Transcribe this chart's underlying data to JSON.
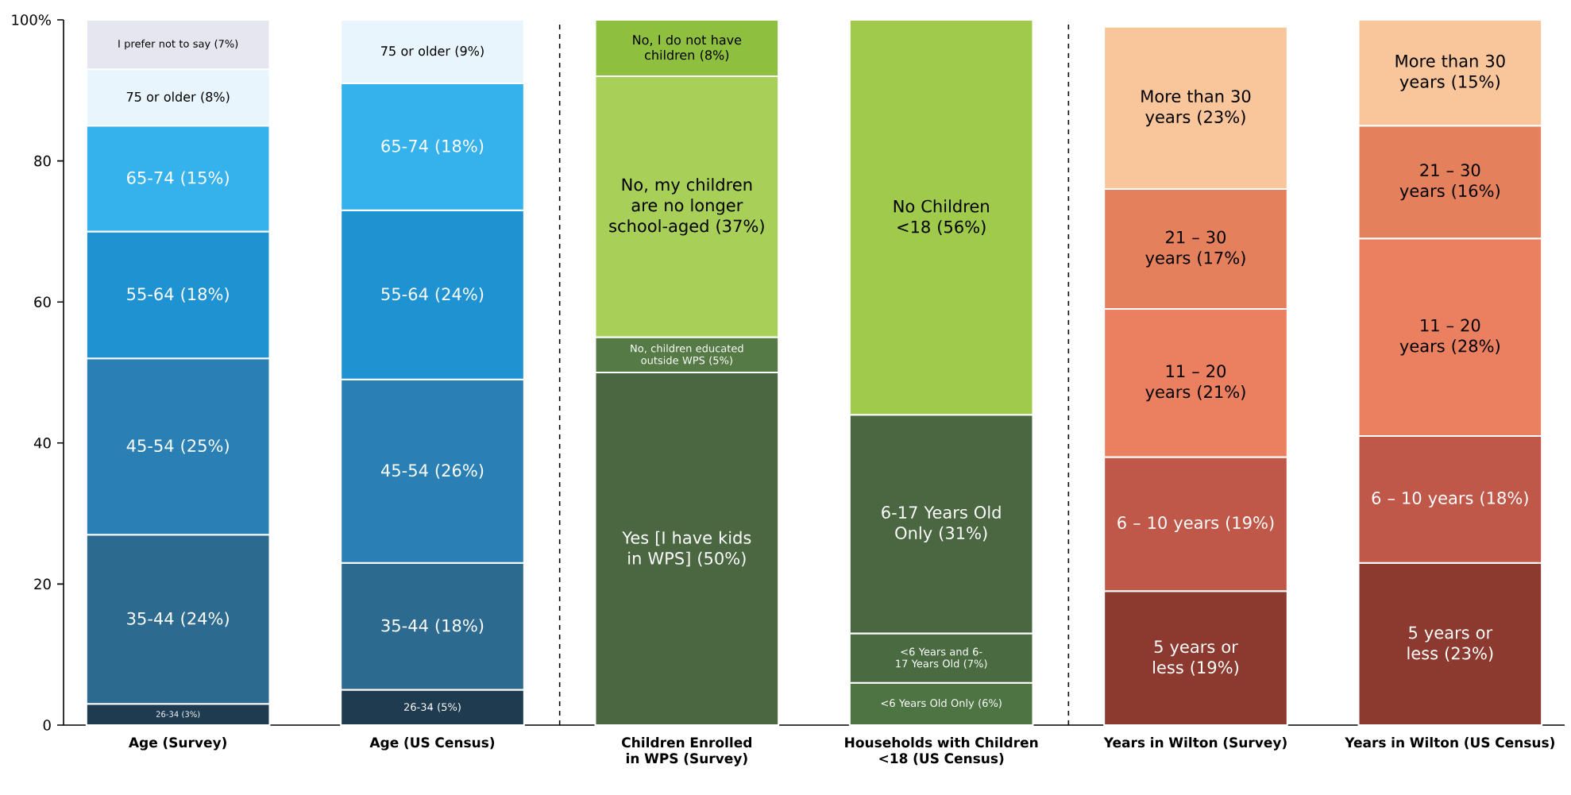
{
  "chart_data": {
    "type": "bar",
    "stacked": true,
    "categories": [
      "Age (Survey)",
      "Age (US Census)",
      "Children Enrolled in WPS (Survey)",
      "Households with Children <18 (US Census)",
      "Years in Wilton (Survey)",
      "Years in Wilton (US Census)"
    ],
    "ylim": [
      0,
      100
    ],
    "yticks": [
      0,
      20,
      40,
      60,
      80,
      {
        "value": 100,
        "label": "100%"
      }
    ],
    "series": [
      {
        "color": "#1f3b50",
        "values": [
          3,
          null,
          null,
          null,
          null,
          null
        ],
        "value_labels": [
          "26-34 (3%)",
          null,
          null,
          null,
          null,
          null
        ]
      },
      {
        "color": "#2d6a90",
        "values": [
          24,
          null,
          null,
          null,
          null,
          null
        ],
        "value_labels": [
          "35-44 (24%)",
          null,
          null,
          null,
          null,
          null
        ]
      },
      {
        "color": "#2a80b4",
        "values": [
          25,
          null,
          null,
          null,
          null,
          null
        ],
        "value_labels": [
          "45-54 (25%)",
          null,
          null,
          null,
          null,
          null
        ]
      },
      {
        "color": "#1f92d2",
        "values": [
          18,
          null,
          null,
          null,
          null,
          null
        ],
        "value_labels": [
          "55-64 (18%)",
          null,
          null,
          null,
          null,
          null
        ]
      },
      {
        "color": "#35b1ec",
        "values": [
          15,
          null,
          null,
          null,
          null,
          null
        ],
        "value_labels": [
          "65-74 (15%)",
          null,
          null,
          null,
          null,
          null
        ]
      },
      {
        "color": "#e9f5fc",
        "values": [
          8,
          null,
          null,
          null,
          null,
          null
        ],
        "value_labels": [
          "75 or older (8%)",
          null,
          null,
          null,
          null,
          null
        ]
      },
      {
        "color": "#e6e6f0",
        "values": [
          7,
          null,
          null,
          null,
          null,
          null
        ],
        "value_labels": [
          "I prefer not to say (7%)",
          null,
          null,
          null,
          null,
          null
        ]
      },
      {
        "color": "#1f3b50",
        "values": [
          null,
          5,
          null,
          null,
          null,
          null
        ],
        "value_labels": [
          null,
          "26-34 (5%)",
          null,
          null,
          null,
          null
        ]
      },
      {
        "color": "#2d6a90",
        "values": [
          null,
          18,
          null,
          null,
          null,
          null
        ],
        "value_labels": [
          null,
          "35-44 (18%)",
          null,
          null,
          null,
          null
        ]
      },
      {
        "color": "#2a80b4",
        "values": [
          null,
          26,
          null,
          null,
          null,
          null
        ],
        "value_labels": [
          null,
          "45-54 (26%)",
          null,
          null,
          null,
          null
        ]
      },
      {
        "color": "#1f92d2",
        "values": [
          null,
          24,
          null,
          null,
          null,
          null
        ],
        "value_labels": [
          null,
          "55-64 (24%)",
          null,
          null,
          null,
          null
        ]
      },
      {
        "color": "#35b1ec",
        "values": [
          null,
          18,
          null,
          null,
          null,
          null
        ],
        "value_labels": [
          null,
          "65-74 (18%)",
          null,
          null,
          null,
          null
        ]
      },
      {
        "color": "#e9f5fc",
        "values": [
          null,
          9,
          null,
          null,
          null,
          null
        ],
        "value_labels": [
          null,
          "75 or older (9%)",
          null,
          null,
          null,
          null
        ]
      },
      {
        "color": "#4a6741",
        "values": [
          null,
          null,
          50,
          null,
          null,
          null
        ],
        "value_labels": [
          null,
          null,
          "Yes [I have kids in WPS] (50%)",
          null,
          null,
          null
        ]
      },
      {
        "color": "#557a45",
        "values": [
          null,
          null,
          5,
          null,
          null,
          null
        ],
        "value_labels": [
          null,
          null,
          "No, children educated outside WPS (5%)",
          null,
          null,
          null
        ]
      },
      {
        "color": "#a8cf58",
        "values": [
          null,
          null,
          37,
          null,
          null,
          null
        ],
        "value_labels": [
          null,
          null,
          "No, my children are no longer school-aged (37%)",
          null,
          null,
          null
        ]
      },
      {
        "color": "#8fbf3f",
        "values": [
          null,
          null,
          8,
          null,
          null,
          null
        ],
        "value_labels": [
          null,
          null,
          "No, I do not have children (8%)",
          null,
          null,
          null
        ]
      },
      {
        "color": "#4e7444",
        "values": [
          null,
          null,
          null,
          6,
          null,
          null
        ],
        "value_labels": [
          null,
          null,
          null,
          "<6 Years Old Only (6%)",
          null,
          null
        ]
      },
      {
        "color": "#4a6b42",
        "values": [
          null,
          null,
          null,
          7,
          null,
          null
        ],
        "value_labels": [
          null,
          null,
          null,
          "<6 Years and 6-17 Years Old (7%)",
          null,
          null
        ]
      },
      {
        "color": "#4a6741",
        "values": [
          null,
          null,
          null,
          31,
          null,
          null
        ],
        "value_labels": [
          null,
          null,
          null,
          "6-17 Years Old Only (31%)",
          null,
          null
        ]
      },
      {
        "color": "#9fca4c",
        "values": [
          null,
          null,
          null,
          56,
          null,
          null
        ],
        "value_labels": [
          null,
          null,
          null,
          "No Children <18 (56%)",
          null,
          null
        ]
      },
      {
        "color": "#8c3a2f",
        "values": [
          null,
          null,
          null,
          null,
          19,
          null
        ],
        "value_labels": [
          null,
          null,
          null,
          null,
          "5 years or less (19%)",
          null
        ]
      },
      {
        "color": "#c0584a",
        "values": [
          null,
          null,
          null,
          null,
          19,
          null
        ],
        "value_labels": [
          null,
          null,
          null,
          null,
          "6 – 10 years (19%)",
          null
        ]
      },
      {
        "color": "#ea8060",
        "values": [
          null,
          null,
          null,
          null,
          21,
          null
        ],
        "value_labels": [
          null,
          null,
          null,
          null,
          "11 – 20 years (21%)",
          null
        ]
      },
      {
        "color": "#e5805d",
        "values": [
          null,
          null,
          null,
          null,
          17,
          null
        ],
        "value_labels": [
          null,
          null,
          null,
          null,
          "21 – 30 years (17%)",
          null
        ]
      },
      {
        "color": "#f9c59b",
        "values": [
          null,
          null,
          null,
          null,
          23,
          null
        ],
        "value_labels": [
          null,
          null,
          null,
          null,
          "More than 30 years (23%)",
          null
        ]
      },
      {
        "color": "#8c3a2f",
        "values": [
          null,
          null,
          null,
          null,
          null,
          23
        ],
        "value_labels": [
          null,
          null,
          null,
          null,
          null,
          "5 years or less (23%)"
        ]
      },
      {
        "color": "#c0584a",
        "values": [
          null,
          null,
          null,
          null,
          null,
          18
        ],
        "value_labels": [
          null,
          null,
          null,
          null,
          null,
          "6 – 10 years (18%)"
        ]
      },
      {
        "color": "#ea8060",
        "values": [
          null,
          null,
          null,
          null,
          null,
          28
        ],
        "value_labels": [
          null,
          null,
          null,
          null,
          null,
          "11 – 20 years (28%)"
        ]
      },
      {
        "color": "#e5805d",
        "values": [
          null,
          null,
          null,
          null,
          null,
          16
        ],
        "value_labels": [
          null,
          null,
          null,
          null,
          null,
          "21 – 30 years (16%)"
        ]
      },
      {
        "color": "#f9c59b",
        "values": [
          null,
          null,
          null,
          null,
          null,
          15
        ],
        "value_labels": [
          null,
          null,
          null,
          null,
          null,
          "More than 30 years (15%)"
        ]
      }
    ]
  }
}
